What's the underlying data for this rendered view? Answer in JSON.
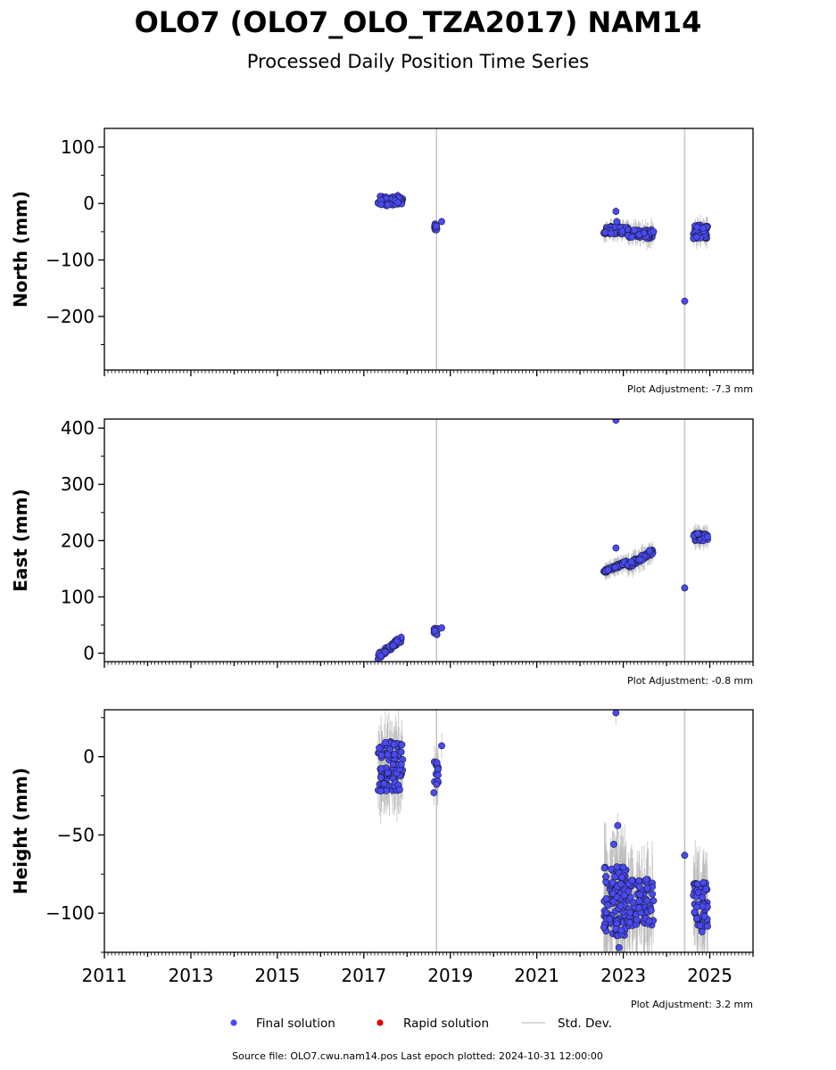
{
  "title": "OLO7 (OLO7_OLO_TZA2017) NAM14",
  "subtitle": "Processed Daily Position Time Series",
  "footer": "Source file: OLO7.cwu.nam14.pos  Last epoch plotted: 2024-10-31 12:00:00",
  "legend": [
    {
      "label": "Final solution",
      "color": "#4a4af0",
      "marker": "circle"
    },
    {
      "label": "Rapid solution",
      "color": "#e00000",
      "marker": "circle"
    },
    {
      "label": "Std. Dev.",
      "color": "#cccccc",
      "marker": "line"
    }
  ],
  "colors": {
    "final": "#4a4af0",
    "final_edge": "#1a1a40",
    "rapid": "#e00000",
    "stddev": "#b8b8b8",
    "vline": "#c8c8c8"
  },
  "chart_data": [
    {
      "type": "scatter",
      "ylabel": "North (mm)",
      "adjustment": "Plot Adjustment: -7.3 mm",
      "xlim": [
        2011.0,
        2026.0
      ],
      "ylim": [
        -295,
        133
      ],
      "yticks": [
        100,
        0,
        -100,
        -200
      ],
      "ytick_labels": [
        "100",
        "0",
        "−100",
        "−200"
      ],
      "xticks": [
        2011,
        2013,
        2015,
        2017,
        2019,
        2021,
        2023,
        2025
      ],
      "xtick_labels": [],
      "vlines": [
        2018.68,
        2024.42
      ],
      "clusters": [
        {
          "x": [
            2017.33,
            2017.9
          ],
          "y": [
            -4,
            14
          ],
          "n": 55,
          "sd": 4
        },
        {
          "x": [
            2018.62,
            2018.7
          ],
          "y": [
            -47,
            -36
          ],
          "n": 12,
          "sd": 3
        },
        {
          "x": [
            2022.55,
            2023.1
          ],
          "y": [
            -54,
            -40
          ],
          "n": 70,
          "sd": 6
        },
        {
          "x": [
            2023.1,
            2023.7
          ],
          "y": [
            -62,
            -46
          ],
          "n": 55,
          "sd": 8
        },
        {
          "x": [
            2024.62,
            2024.95
          ],
          "y": [
            -62,
            -38
          ],
          "n": 45,
          "sd": 7
        }
      ],
      "points": [
        [
          2018.8,
          -32
        ],
        [
          2022.83,
          -14
        ],
        [
          2024.42,
          -173
        ],
        [
          2022.85,
          -32
        ]
      ]
    },
    {
      "type": "scatter",
      "ylabel": "East (mm)",
      "adjustment": "Plot Adjustment: -0.8 mm",
      "xlim": [
        2011.0,
        2026.0
      ],
      "ylim": [
        -15,
        416
      ],
      "yticks": [
        0,
        100,
        200,
        300,
        400
      ],
      "ytick_labels": [
        "0",
        "100",
        "200",
        "300",
        "400"
      ],
      "xticks": [
        2011,
        2013,
        2015,
        2017,
        2019,
        2021,
        2023,
        2025
      ],
      "xtick_labels": [],
      "vlines": [
        2018.68,
        2024.42
      ],
      "clusters": [
        {
          "x": [
            2017.33,
            2017.9
          ],
          "y": [
            -5,
            27
          ],
          "n": 55,
          "sd": 4,
          "trend": true
        },
        {
          "x": [
            2018.62,
            2018.7
          ],
          "y": [
            33,
            44
          ],
          "n": 12,
          "sd": 3
        },
        {
          "x": [
            2022.55,
            2023.1
          ],
          "y": [
            145,
            162
          ],
          "n": 70,
          "sd": 6,
          "trend": true
        },
        {
          "x": [
            2023.1,
            2023.7
          ],
          "y": [
            155,
            182
          ],
          "n": 55,
          "sd": 8,
          "trend": true
        },
        {
          "x": [
            2024.62,
            2024.95
          ],
          "y": [
            200,
            213
          ],
          "n": 45,
          "sd": 7
        }
      ],
      "points": [
        [
          2018.8,
          45
        ],
        [
          2022.83,
          187
        ],
        [
          2022.83,
          414
        ],
        [
          2024.42,
          116
        ]
      ]
    },
    {
      "type": "scatter",
      "ylabel": "Height (mm)",
      "adjustment": "Plot Adjustment: 3.2 mm",
      "xlim": [
        2011.0,
        2026.0
      ],
      "ylim": [
        -125,
        30
      ],
      "yticks": [
        0,
        -50,
        -100
      ],
      "ytick_labels": [
        "0",
        "−50",
        "−100"
      ],
      "xticks": [
        2011,
        2013,
        2015,
        2017,
        2019,
        2021,
        2023,
        2025
      ],
      "xtick_labels": [
        "2011",
        "2013",
        "2015",
        "2017",
        "2019",
        "2021",
        "2023",
        "2025"
      ],
      "vlines": [
        2018.68,
        2024.42
      ],
      "clusters": [
        {
          "x": [
            2017.33,
            2017.9
          ],
          "y": [
            -22,
            10
          ],
          "n": 90,
          "sd": 8
        },
        {
          "x": [
            2018.62,
            2018.72
          ],
          "y": [
            -18,
            0
          ],
          "n": 14,
          "sd": 6
        },
        {
          "x": [
            2022.55,
            2023.1
          ],
          "y": [
            -115,
            -70
          ],
          "n": 110,
          "sd": 12
        },
        {
          "x": [
            2023.1,
            2023.7
          ],
          "y": [
            -108,
            -78
          ],
          "n": 75,
          "sd": 10
        },
        {
          "x": [
            2024.62,
            2024.95
          ],
          "y": [
            -112,
            -80
          ],
          "n": 55,
          "sd": 10
        }
      ],
      "points": [
        [
          2018.8,
          7
        ],
        [
          2022.83,
          28
        ],
        [
          2022.87,
          -44
        ],
        [
          2024.42,
          -63
        ],
        [
          2018.62,
          -23
        ],
        [
          2022.78,
          -56
        ],
        [
          2022.9,
          -122
        ]
      ]
    }
  ]
}
